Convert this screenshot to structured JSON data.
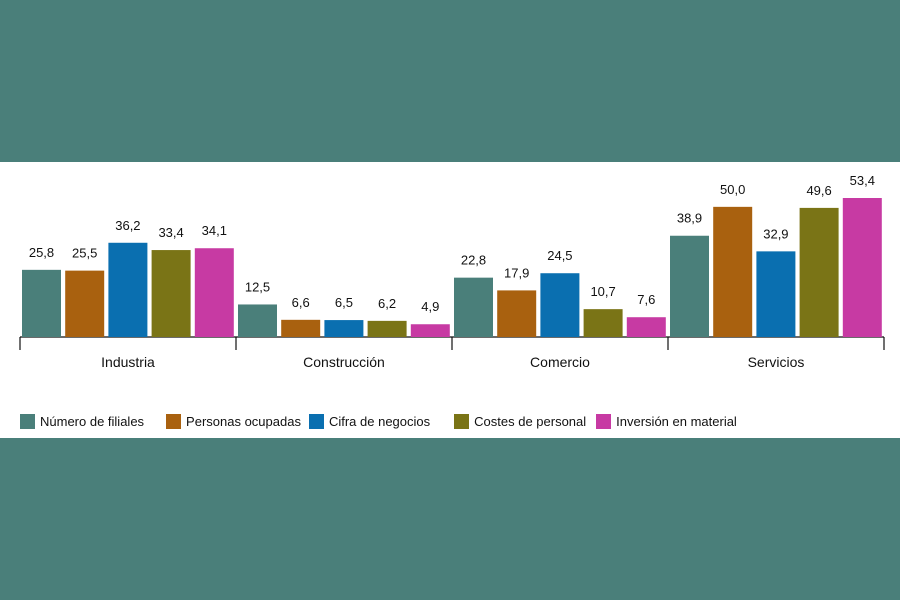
{
  "chart_data": {
    "type": "bar",
    "categories": [
      "Industria",
      "Construcción",
      "Comercio",
      "Servicios"
    ],
    "series": [
      {
        "name": "Número de filiales",
        "color": "#4a7f7a",
        "values": [
          25.8,
          12.5,
          22.8,
          38.9
        ],
        "labels": [
          "25,8",
          "12,5",
          "22,8",
          "38,9"
        ]
      },
      {
        "name": "Personas ocupadas",
        "color": "#a9610f",
        "values": [
          25.5,
          6.6,
          17.9,
          50.0
        ],
        "labels": [
          "25,5",
          "6,6",
          "17,9",
          "50,0"
        ]
      },
      {
        "name": "Cifra de negocios",
        "color": "#0a6fb0",
        "values": [
          36.2,
          6.5,
          24.5,
          32.9
        ],
        "labels": [
          "36,2",
          "6,5",
          "24,5",
          "32,9"
        ]
      },
      {
        "name": "Costes de personal",
        "color": "#7a7416",
        "values": [
          33.4,
          6.2,
          10.7,
          49.6
        ],
        "labels": [
          "33,4",
          "6,2",
          "10,7",
          "49,6"
        ]
      },
      {
        "name": "Inversión en material",
        "color": "#c73aa3",
        "values": [
          34.1,
          4.9,
          7.6,
          53.4
        ],
        "labels": [
          "34,1",
          "4,9",
          "7,6",
          "53,4"
        ]
      }
    ],
    "ylim": [
      0,
      53.4
    ],
    "grid": false,
    "legend_position": "bottom-left"
  }
}
